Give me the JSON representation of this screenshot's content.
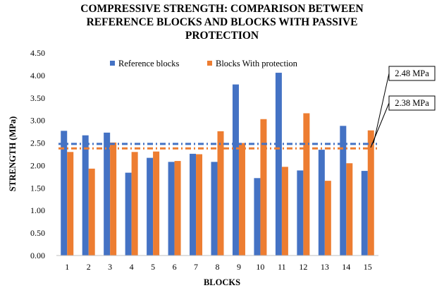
{
  "chart_data": {
    "type": "bar",
    "title": [
      "COMPRESSIVE STRENGTH: COMPARISON BETWEEN",
      "REFERENCE BLOCKS AND BLOCKS WITH PASSIVE",
      "PROTECTION"
    ],
    "xlabel": "BLOCKS",
    "ylabel": "STRENGTH (MPa)",
    "ylim": [
      0,
      4.5
    ],
    "yticks": [
      "0.00",
      "0.50",
      "1.00",
      "1.50",
      "2.00",
      "2.50",
      "3.00",
      "3.50",
      "4.00",
      "4.50"
    ],
    "categories": [
      "1",
      "2",
      "3",
      "4",
      "5",
      "6",
      "7",
      "8",
      "9",
      "10",
      "11",
      "12",
      "13",
      "14",
      "15"
    ],
    "series": [
      {
        "name": "Reference blocks",
        "color": "#4472C4",
        "values": [
          2.77,
          2.67,
          2.73,
          1.84,
          2.17,
          2.08,
          2.26,
          2.08,
          3.8,
          1.72,
          4.06,
          1.89,
          2.35,
          2.88,
          1.88
        ]
      },
      {
        "name": "Blocks With protection",
        "color": "#ED7D31",
        "values": [
          2.3,
          1.93,
          2.51,
          2.3,
          2.31,
          2.1,
          2.25,
          2.76,
          2.5,
          3.03,
          1.97,
          3.16,
          1.66,
          2.05,
          2.78
        ]
      }
    ],
    "reference_lines": [
      {
        "series": "Reference blocks",
        "value": 2.48,
        "label": "2.48 MPa",
        "color": "#4472C4",
        "style": "dash-dot"
      },
      {
        "series": "Blocks With protection",
        "value": 2.38,
        "label": "2.38 MPa",
        "color": "#ED7D31",
        "style": "dash-dot"
      }
    ],
    "legend": "top-center",
    "grid": false
  }
}
